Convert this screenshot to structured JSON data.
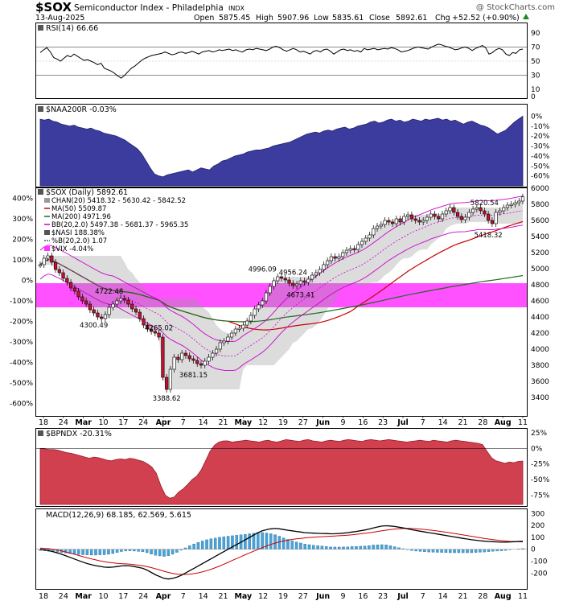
{
  "header": {
    "symbol": "$SOX",
    "name": "Semiconductor Index - Philadelphia",
    "exchange": "INDX",
    "watermark": "@ StockCharts.com",
    "date": "13-Aug-2025",
    "quote": {
      "open_label": "Open",
      "open": "5875.45",
      "high_label": "High",
      "high": "5907.96",
      "low_label": "Low",
      "low": "5835.61",
      "close_label": "Close",
      "close": "5892.61",
      "chg_label": "Chg",
      "chg": "+52.52 (+0.90%)"
    }
  },
  "colors": {
    "rsi_line": "#000000",
    "naa_fill": "#3c3c9e",
    "price_up": "#ffffff",
    "price_down": "#c8102e",
    "ma50": "#cc0000",
    "ma200": "#1f6b1f",
    "bb": "#cc00cc",
    "chan_fill": "#9a9a9a",
    "vix_fill": "#ff33ff",
    "nasi": "#000000",
    "bpndx_fill": "#d0404f",
    "macd": "#000000",
    "signal": "#cc0000",
    "hist": "#4aa3d8"
  },
  "x_axis": {
    "labels": [
      "18",
      "24",
      "Mar",
      "10",
      "17",
      "24",
      "Apr",
      "7",
      "14",
      "21",
      "May",
      "12",
      "19",
      "27",
      "Jun",
      "9",
      "16",
      "23",
      "Jul",
      "7",
      "14",
      "21",
      "28",
      "Aug",
      "11"
    ],
    "bold": [
      "Mar",
      "Apr",
      "May",
      "Jun",
      "Jul",
      "Aug"
    ]
  },
  "chart_data": [
    {
      "type": "line",
      "panel": "rsi",
      "title": "RSI(14) 66.66",
      "ylim": [
        0,
        100
      ],
      "yticks": [
        0,
        10,
        30,
        50,
        70,
        90
      ],
      "reference_lines": [
        30,
        70
      ],
      "series": [
        {
          "name": "RSI(14)",
          "values": [
            62,
            66,
            69,
            63,
            55,
            53,
            50,
            54,
            58,
            56,
            60,
            57,
            54,
            51,
            52,
            50,
            48,
            45,
            47,
            40,
            38,
            36,
            33,
            29,
            26,
            30,
            35,
            40,
            43,
            47,
            51,
            54,
            56,
            58,
            59,
            60,
            61,
            63,
            61,
            59,
            60,
            62,
            63,
            61,
            62,
            64,
            62,
            60,
            63,
            64,
            65,
            63,
            64,
            66,
            65,
            66,
            67,
            65,
            66,
            64,
            63,
            66,
            67,
            66,
            68,
            67,
            66,
            65,
            67,
            70,
            71,
            69,
            66,
            64,
            66,
            68,
            66,
            63,
            64,
            62,
            60,
            64,
            65,
            63,
            66,
            67,
            64,
            60,
            63,
            66,
            67,
            65,
            66,
            64,
            65,
            63,
            68,
            66,
            67,
            68,
            66,
            67,
            68,
            67,
            69,
            68,
            66,
            63,
            64,
            65,
            67,
            69,
            70,
            69,
            68,
            67,
            70,
            72,
            74,
            73,
            71,
            70,
            68,
            66,
            67,
            69,
            70,
            68,
            65,
            68,
            70,
            72,
            69,
            60,
            62,
            66,
            68,
            66,
            60,
            58,
            62,
            61,
            66,
            67
          ]
        }
      ]
    },
    {
      "type": "area",
      "panel": "naa200r",
      "title": "$NAA200R -0.03%",
      "ylim": [
        -70,
        10
      ],
      "yticks": [
        0,
        -10,
        -20,
        -30,
        -40,
        -50,
        -60
      ],
      "yticklabels": [
        "0%",
        "-10%",
        "-20%",
        "-30%",
        "-40%",
        "-50%",
        "-60%"
      ],
      "series": [
        {
          "name": "$NAA200R",
          "values": [
            -3,
            -4,
            -3,
            -5,
            -6,
            -8,
            -9,
            -10,
            -9,
            -11,
            -12,
            -13,
            -12,
            -14,
            -15,
            -17,
            -18,
            -19,
            -20,
            -22,
            -24,
            -27,
            -30,
            -33,
            -38,
            -45,
            -52,
            -58,
            -60,
            -61,
            -59,
            -58,
            -57,
            -56,
            -55,
            -54,
            -56,
            -54,
            -52,
            -53,
            -54,
            -50,
            -48,
            -45,
            -44,
            -42,
            -40,
            -39,
            -38,
            -36,
            -35,
            -34,
            -34,
            -33,
            -32,
            -30,
            -29,
            -28,
            -27,
            -26,
            -24,
            -22,
            -20,
            -18,
            -17,
            -16,
            -17,
            -15,
            -14,
            -15,
            -13,
            -12,
            -11,
            -13,
            -12,
            -10,
            -9,
            -8,
            -6,
            -5,
            -7,
            -6,
            -4,
            -3,
            -5,
            -4,
            -6,
            -5,
            -3,
            -4,
            -5,
            -3,
            -4,
            -3,
            -2,
            -4,
            -3,
            -5,
            -4,
            -6,
            -8,
            -6,
            -5,
            -7,
            -9,
            -10,
            -12,
            -15,
            -18,
            -16,
            -14,
            -10,
            -6,
            -3,
            -0.03
          ]
        }
      ]
    },
    {
      "type": "candlestick",
      "panel": "price",
      "title": "$SOX (Daily) 5892.61",
      "ylim": [
        3200,
        6000
      ],
      "yticks": [
        3400,
        3600,
        3800,
        4000,
        4200,
        4400,
        4600,
        4800,
        5000,
        5200,
        5400,
        5600,
        5800,
        6000
      ],
      "left_axis": {
        "ylim": [
          -650,
          450
        ],
        "ticks": [
          400,
          300,
          200,
          100,
          0,
          -100,
          -200,
          -300,
          -400,
          -500,
          -600
        ],
        "ticklabels": [
          "400%",
          "300%",
          "200%",
          "100%",
          "0%",
          "-100%",
          "-200%",
          "-300%",
          "-400%",
          "-500%",
          "-600%"
        ]
      },
      "legend": [
        "CHAN(20) 5418.32 - 5630.42 - 5842.52",
        "MA(50) 5509.87",
        "MA(200) 4971.96",
        "BB(20,2.0) 5497.38 - 5681.37 - 5965.35",
        "$NASI 188.38%",
        "%B(20,2.0) 1.07",
        "$VIX -4.04%"
      ],
      "annotations": [
        {
          "text": "4722.48",
          "x": 18,
          "y": 4722.48
        },
        {
          "text": "4300.49",
          "x": 14,
          "y": 4300.49
        },
        {
          "text": "4265.02",
          "x": 31,
          "y": 4265.02
        },
        {
          "text": "3681.15",
          "x": 40,
          "y": 3681.15
        },
        {
          "text": "3388.62",
          "x": 33,
          "y": 3388.62
        },
        {
          "text": "4996.09",
          "x": 58,
          "y": 4996.09
        },
        {
          "text": "4956.24",
          "x": 66,
          "y": 4956.24
        },
        {
          "text": "4673.41",
          "x": 68,
          "y": 4673.41
        },
        {
          "text": "5820.54",
          "x": 116,
          "y": 5820.54
        },
        {
          "text": "5418.32",
          "x": 117,
          "y": 5418.32
        }
      ],
      "close": [
        5050,
        5130,
        5160,
        5080,
        4990,
        4950,
        4880,
        4830,
        4760,
        4720,
        4650,
        4600,
        4560,
        4490,
        4450,
        4400,
        4380,
        4430,
        4520,
        4560,
        4600,
        4630,
        4610,
        4560,
        4500,
        4460,
        4380,
        4300,
        4250,
        4220,
        4200,
        4150,
        3650,
        3500,
        3750,
        3900,
        3870,
        3950,
        3920,
        3880,
        3860,
        3820,
        3800,
        3850,
        3900,
        3950,
        4000,
        4080,
        4100,
        4150,
        4200,
        4250,
        4260,
        4300,
        4350,
        4420,
        4500,
        4550,
        4600,
        4700,
        4780,
        4850,
        4900,
        4880,
        4860,
        4820,
        4790,
        4810,
        4850,
        4830,
        4870,
        4920,
        4950,
        4990,
        5050,
        5100,
        5150,
        5130,
        5150,
        5200,
        5230,
        5250,
        5240,
        5300,
        5340,
        5380,
        5420,
        5500,
        5530,
        5550,
        5600,
        5580,
        5560,
        5620,
        5580,
        5650,
        5670,
        5620,
        5600,
        5580,
        5600,
        5640,
        5680,
        5650,
        5620,
        5680,
        5720,
        5760,
        5700,
        5650,
        5610,
        5640,
        5700,
        5740,
        5760,
        5720,
        5680,
        5600,
        5560,
        5700,
        5720,
        5760,
        5790,
        5800,
        5820,
        5840,
        5892.61
      ]
    },
    {
      "type": "area",
      "panel": "bpndx",
      "title": "$BPNDX -20.31%",
      "ylim": [
        -90,
        30
      ],
      "yticks": [
        25,
        0,
        -25,
        -50,
        -75
      ],
      "yticklabels": [
        "25%",
        "0%",
        "-25%",
        "-50%",
        "-75%"
      ],
      "series": [
        {
          "name": "$BPNDX",
          "values": [
            0,
            -1,
            -2,
            -2,
            -3,
            -5,
            -7,
            -8,
            -10,
            -12,
            -14,
            -16,
            -14,
            -15,
            -17,
            -19,
            -20,
            -18,
            -17,
            -18,
            -16,
            -17,
            -19,
            -21,
            -25,
            -30,
            -40,
            -60,
            -75,
            -80,
            -78,
            -70,
            -65,
            -58,
            -50,
            -45,
            -35,
            -20,
            -5,
            5,
            10,
            12,
            12,
            10,
            11,
            12,
            13,
            12,
            11,
            10,
            12,
            13,
            11,
            10,
            12,
            14,
            13,
            12,
            11,
            13,
            14,
            12,
            11,
            10,
            12,
            13,
            12,
            11,
            13,
            14,
            13,
            12,
            11,
            13,
            14,
            13,
            12,
            13,
            14,
            13,
            12,
            11,
            10,
            11,
            12,
            13,
            12,
            11,
            13,
            12,
            11,
            10,
            12,
            13,
            12,
            11,
            10,
            9,
            8,
            6,
            -5,
            -15,
            -20,
            -22,
            -24,
            -22,
            -23,
            -21,
            -20.31
          ]
        }
      ]
    },
    {
      "type": "line",
      "panel": "macd",
      "title": "MACD(12,26,9) 68.185, 62.569, 5.615",
      "ylim": [
        -320,
        330
      ],
      "yticks": [
        300,
        200,
        100,
        0,
        -100,
        -200
      ],
      "series": [
        {
          "name": "MACD(12,26,9)",
          "values": [
            0,
            -5,
            -12,
            -20,
            -30,
            -42,
            -55,
            -68,
            -82,
            -95,
            -108,
            -120,
            -130,
            -138,
            -144,
            -150,
            -152,
            -150,
            -145,
            -140,
            -138,
            -140,
            -145,
            -152,
            -160,
            -175,
            -195,
            -215,
            -230,
            -245,
            -250,
            -245,
            -235,
            -220,
            -200,
            -180,
            -160,
            -140,
            -120,
            -100,
            -80,
            -60,
            -40,
            -20,
            0,
            20,
            40,
            60,
            80,
            100,
            120,
            140,
            155,
            165,
            172,
            175,
            172,
            166,
            160,
            155,
            150,
            145,
            140,
            138,
            136,
            134,
            133,
            132,
            130,
            131,
            133,
            136,
            140,
            145,
            150,
            156,
            162,
            170,
            180,
            188,
            195,
            198,
            196,
            192,
            186,
            180,
            172,
            165,
            158,
            152,
            146,
            140,
            134,
            128,
            122,
            116,
            110,
            104,
            98,
            92,
            86,
            80,
            76,
            72,
            68,
            66,
            64,
            62,
            60,
            60,
            62,
            64,
            66,
            68.185
          ]
        },
        {
          "name": "Signal",
          "values": [
            10,
            8,
            5,
            0,
            -6,
            -14,
            -23,
            -32,
            -42,
            -52,
            -62,
            -72,
            -81,
            -89,
            -97,
            -104,
            -110,
            -114,
            -118,
            -121,
            -123,
            -126,
            -130,
            -134,
            -139,
            -146,
            -154,
            -164,
            -174,
            -185,
            -195,
            -203,
            -209,
            -212,
            -212,
            -210,
            -205,
            -198,
            -190,
            -180,
            -168,
            -155,
            -141,
            -126,
            -110,
            -94,
            -78,
            -62,
            -46,
            -31,
            -16,
            -1,
            14,
            28,
            41,
            52,
            62,
            70,
            77,
            83,
            88,
            92,
            96,
            99,
            102,
            104,
            106,
            108,
            110,
            112,
            114,
            116,
            119,
            122,
            126,
            130,
            134,
            139,
            144,
            150,
            156,
            161,
            166,
            170,
            173,
            175,
            176,
            175,
            173,
            170,
            167,
            163,
            159,
            154,
            149,
            144,
            139,
            133,
            127,
            121,
            115,
            109,
            103,
            97,
            91,
            86,
            81,
            77,
            73,
            69,
            66,
            64,
            63,
            62.569
          ]
        }
      ],
      "histogram": [
        -10,
        -13,
        -17,
        -20,
        -24,
        -28,
        -32,
        -36,
        -40,
        -43,
        -46,
        -48,
        -49,
        -49,
        -47,
        -46,
        -42,
        -36,
        -27,
        -19,
        -15,
        -14,
        -15,
        -18,
        -21,
        -29,
        -41,
        -51,
        -56,
        -60,
        -55,
        -42,
        -26,
        -8,
        12,
        30,
        45,
        58,
        70,
        80,
        88,
        95,
        101,
        106,
        110,
        114,
        118,
        122,
        126,
        131,
        136,
        141,
        141,
        137,
        131,
        123,
        110,
        96,
        83,
        72,
        62,
        53,
        44,
        39,
        34,
        30,
        27,
        24,
        20,
        19,
        19,
        20,
        21,
        23,
        24,
        26,
        28,
        31,
        36,
        38,
        39,
        37,
        30,
        22,
        13,
        5,
        -4,
        -10,
        -15,
        -18,
        -21,
        -23,
        -25,
        -26,
        -27,
        -28,
        -29,
        -29,
        -29,
        -29,
        -29,
        -29,
        -27,
        -25,
        -23,
        -20,
        -17,
        -15,
        -13,
        -10,
        -4,
        0,
        3,
        5.615
      ]
    }
  ]
}
